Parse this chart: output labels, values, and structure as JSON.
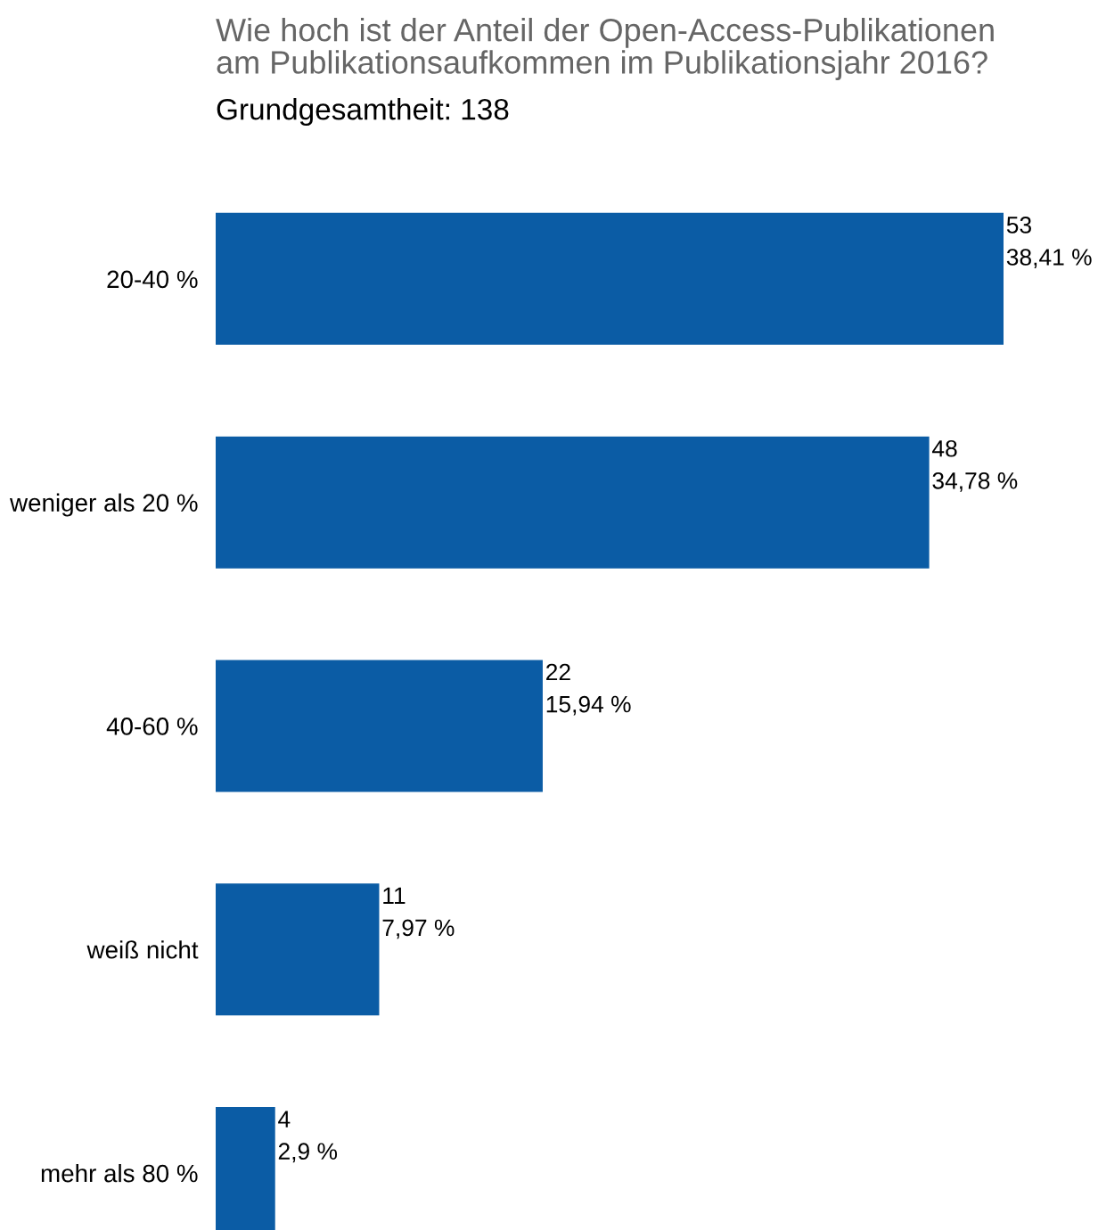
{
  "chart_data": {
    "type": "bar",
    "orientation": "horizontal",
    "title": "Wie hoch ist der Anteil der Open-Access-Publikationen\nam Publikationsaufkommen im Publikationsjahr 2016?",
    "subtitle": "Grundgesamtheit: 138",
    "categories": [
      "20-40 %",
      "weniger als 20 %",
      "40-60 %",
      "weiß nicht",
      "mehr als 80 %"
    ],
    "values": [
      53,
      48,
      22,
      11,
      4
    ],
    "value_labels": [
      "53\n38,41 %",
      "48\n34,78 %",
      "22\n15,94 %",
      "11\n7,97 %",
      "4\n2,9 %"
    ],
    "color": "#0b5ca5"
  }
}
